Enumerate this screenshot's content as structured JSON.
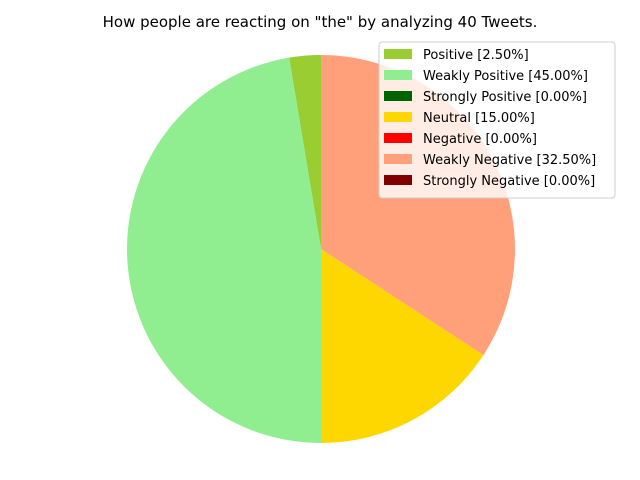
{
  "chart_data": {
    "type": "pie",
    "title": "How people are reacting on \"the\" by analyzing 40 Tweets.",
    "start_angle_deg": 90,
    "direction": "counterclockwise",
    "legend_placement": "top-right",
    "slices": [
      {
        "label": "Positive [2.50%]",
        "value": 2.5,
        "color": "#9acd32"
      },
      {
        "label": "Weakly Positive [45.00%]",
        "value": 45.0,
        "color": "#90ee90"
      },
      {
        "label": "Strongly Positive [0.00%]",
        "value": 0.0,
        "color": "#006400"
      },
      {
        "label": "Neutral [15.00%]",
        "value": 15.0,
        "color": "#ffd700"
      },
      {
        "label": "Negative [0.00%]",
        "value": 0.0,
        "color": "#ff0000"
      },
      {
        "label": "Weakly Negative [32.50%]",
        "value": 32.5,
        "color": "#ffa07a"
      },
      {
        "label": "Strongly Negative [0.00%]",
        "value": 0.0,
        "color": "#800000"
      }
    ]
  }
}
